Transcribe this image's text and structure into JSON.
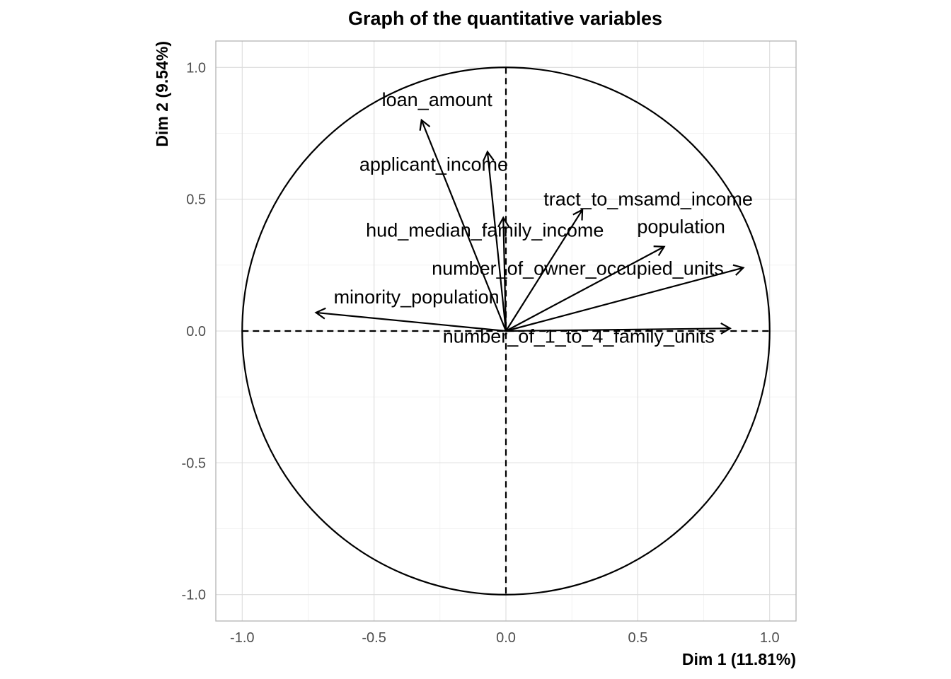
{
  "chart_data": {
    "type": "scatter",
    "title": "Graph of the quantitative variables",
    "xlabel": "Dim 1 (11.81%)",
    "ylabel": "Dim 2 (9.54%)",
    "xlim": [
      -1.1,
      1.1
    ],
    "ylim": [
      -1.1,
      1.1
    ],
    "x_ticks": [
      -1.0,
      -0.5,
      0.0,
      0.5,
      1.0
    ],
    "x_tick_labels": [
      "-1.0",
      "-0.5",
      "0.0",
      "0.5",
      "1.0"
    ],
    "y_ticks": [
      -1.0,
      -0.5,
      0.0,
      0.5,
      1.0
    ],
    "y_tick_labels": [
      "-1.0",
      "-0.5",
      "0.0",
      "0.5",
      "1.0"
    ],
    "grid": true,
    "unit_circle": true,
    "variables": [
      {
        "name": "loan_amount",
        "x": -0.32,
        "y": 0.8
      },
      {
        "name": "applicant_income",
        "x": -0.07,
        "y": 0.68
      },
      {
        "name": "tract_to_msamd_income",
        "x": 0.29,
        "y": 0.46
      },
      {
        "name": "hud_median_family_income",
        "x": -0.01,
        "y": 0.43
      },
      {
        "name": "population",
        "x": 0.6,
        "y": 0.32
      },
      {
        "name": "number_of_owner_occupied_units",
        "x": 0.9,
        "y": 0.24
      },
      {
        "name": "minority_population",
        "x": -0.72,
        "y": 0.07
      },
      {
        "name": "number_of_1_to_4_family_units",
        "x": 0.85,
        "y": 0.01
      }
    ]
  }
}
